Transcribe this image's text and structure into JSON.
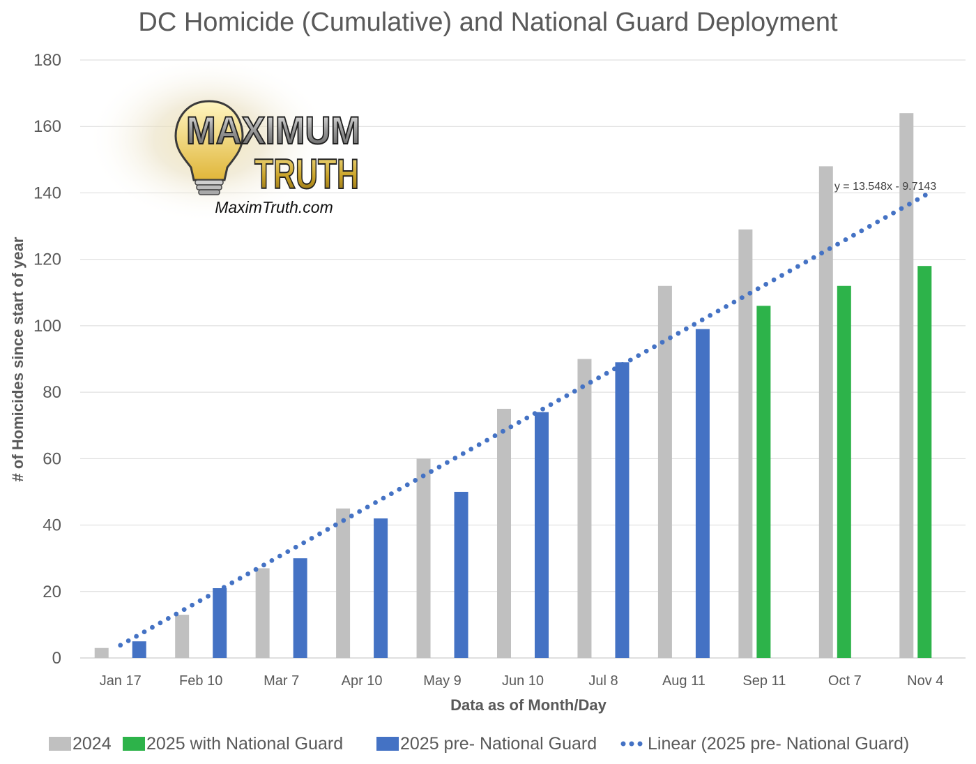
{
  "chart_data": {
    "type": "bar",
    "title": "DC Homicide (Cumulative) and National Guard Deployment",
    "xlabel": "Data as of Month/Day",
    "ylabel": "# of Homicides since start of year",
    "ylim": [
      0,
      180
    ],
    "yticks": [
      0,
      20,
      40,
      60,
      80,
      100,
      120,
      140,
      160,
      180
    ],
    "grid": true,
    "legend_position": "bottom",
    "categories": [
      "Jan 17",
      "Feb 10",
      "Mar 7",
      "Apr 10",
      "May 9",
      "Jun 10",
      "Jul 8",
      "Aug 11",
      "Sep 11",
      "Oct 7",
      "Nov 4"
    ],
    "series": [
      {
        "name": "2024",
        "color": "#c0c0c0",
        "values": [
          3,
          13,
          27,
          45,
          60,
          75,
          90,
          112,
          129,
          148,
          164
        ]
      },
      {
        "name": "2025 with National Guard",
        "color": "#2db34a",
        "values": [
          null,
          null,
          null,
          null,
          null,
          null,
          null,
          null,
          106,
          112,
          118
        ]
      },
      {
        "name": "2025 pre- National Guard",
        "color": "#4472c4",
        "values": [
          5,
          21,
          30,
          42,
          50,
          74,
          89,
          99,
          null,
          null,
          null
        ]
      }
    ],
    "trendline": {
      "name": "Linear (2025 pre- National Guard)",
      "color": "#4472c4",
      "slope": 13.548,
      "intercept": -9.7143,
      "x_start": 1,
      "x_end": 11,
      "equation_label": "y = 13.548x - 9.7143"
    }
  },
  "logo": {
    "line1": "MAXIMUM",
    "line2": "TRUTH",
    "website": "MaximTruth.com"
  }
}
